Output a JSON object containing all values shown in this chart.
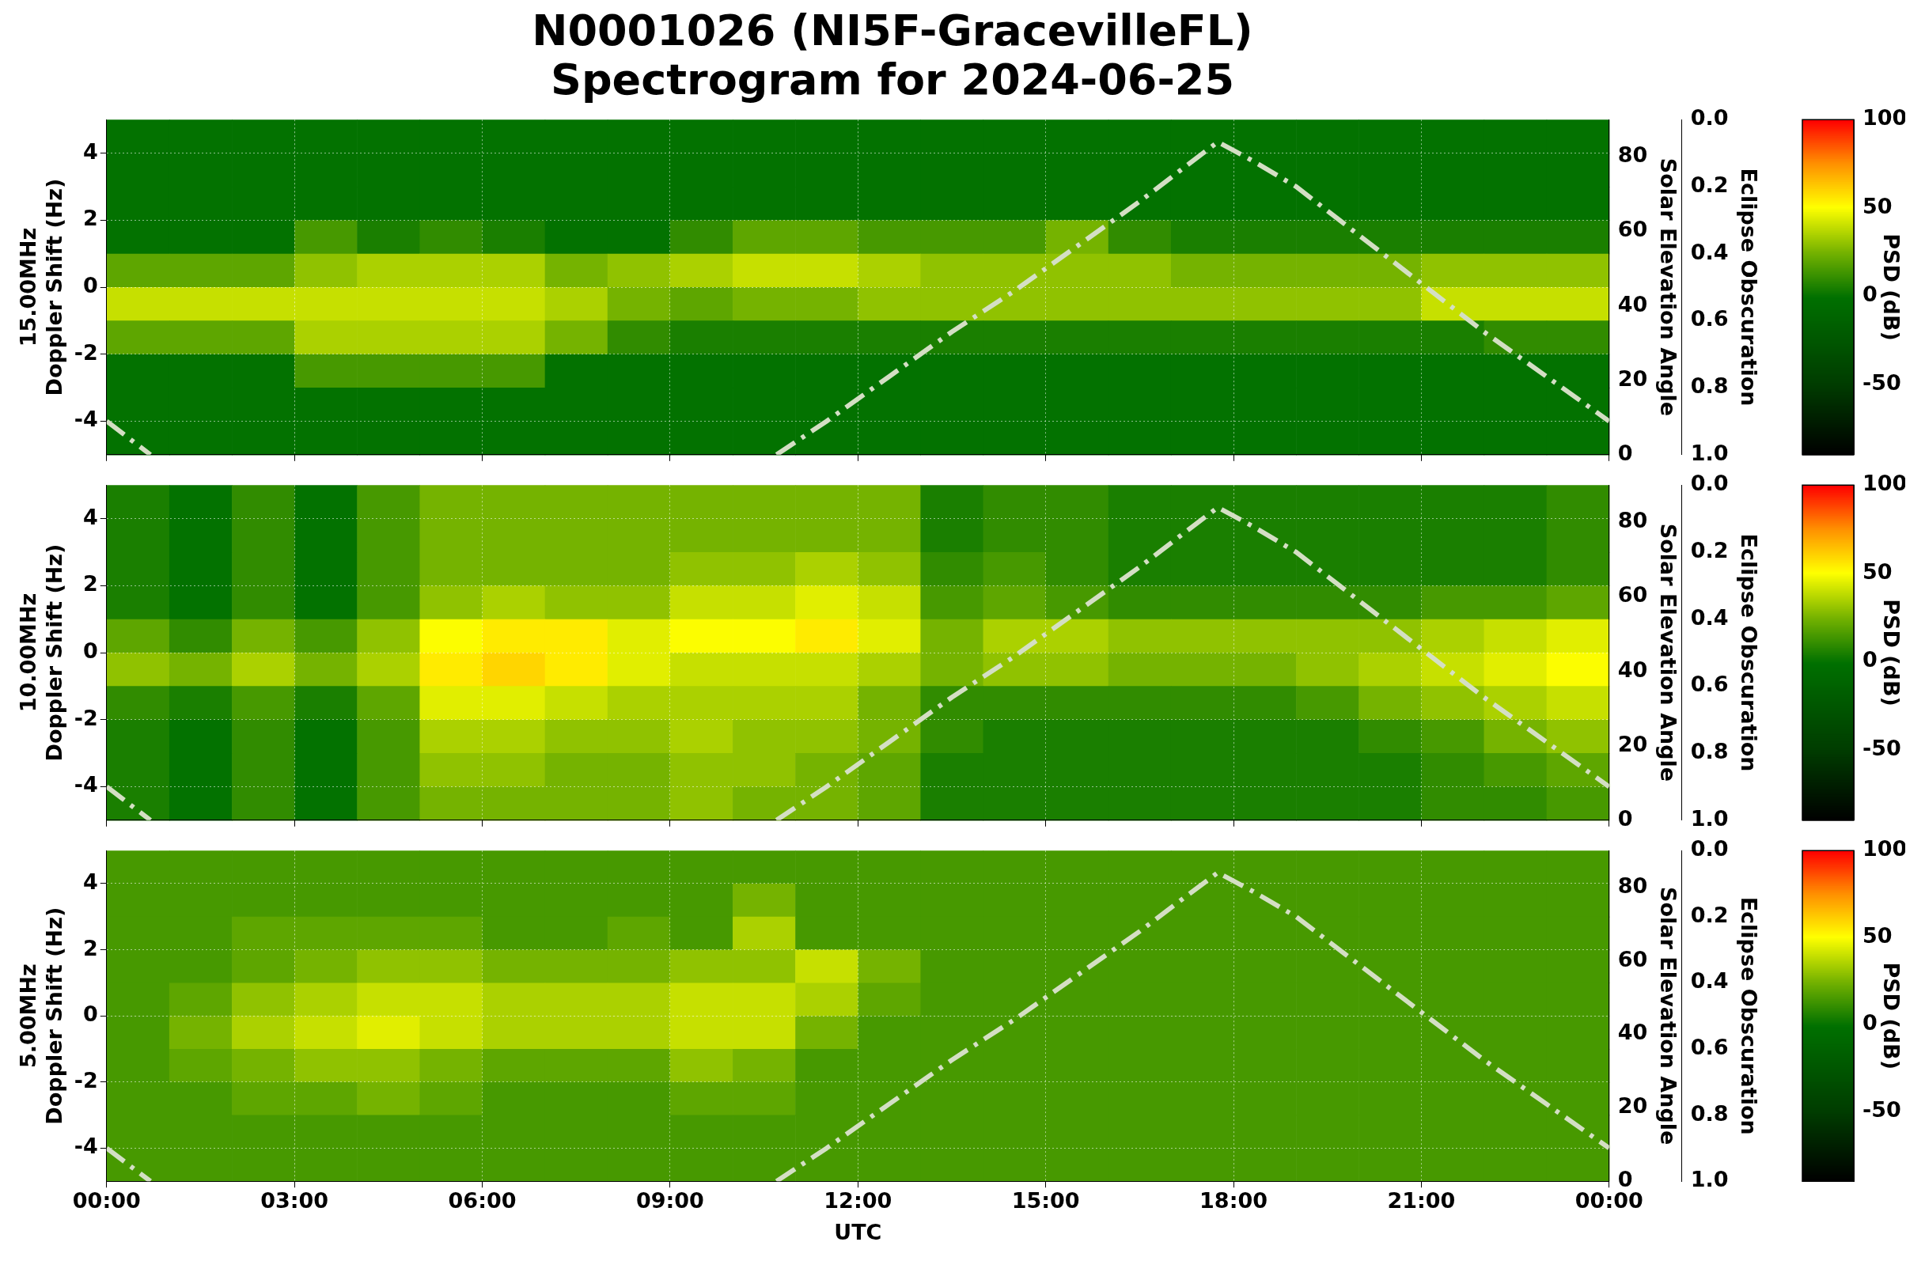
{
  "chart_data": [
    {
      "type": "heatmap",
      "title": "N0001026 (NI5F-GracevilleFL)\nSpectrogram for 2024-06-25",
      "ylabel": "15.00MHz\nDoppler Shift (Hz)",
      "y2label": "Solar Elevation Angle",
      "y3label": "Eclipse Obscuration",
      "clabel": "PSD (dB)",
      "xlim": [
        0,
        24
      ],
      "xticks": [
        {
          "value": 0,
          "label": null
        },
        {
          "value": 3,
          "label": null
        },
        {
          "value": 6,
          "label": null
        },
        {
          "value": 9,
          "label": null
        },
        {
          "value": 12,
          "label": null
        },
        {
          "value": 15,
          "label": null
        },
        {
          "value": 18,
          "label": null
        },
        {
          "value": 21,
          "label": null
        },
        {
          "value": 24,
          "label": null
        }
      ],
      "ylim": [
        -5,
        5
      ],
      "yticks": [
        -4,
        -2,
        0,
        2,
        4
      ],
      "y2lim": [
        0,
        90
      ],
      "y2ticks": [
        0,
        20,
        40,
        60,
        80
      ],
      "y3lim": [
        1,
        0
      ],
      "y3ticks": [
        {
          "value": 0,
          "label": "0.0"
        },
        {
          "value": 0.2,
          "label": "0.2"
        },
        {
          "value": 0.4,
          "label": "0.4"
        },
        {
          "value": 0.6,
          "label": "0.6"
        },
        {
          "value": 0.8,
          "label": "0.8"
        },
        {
          "value": 1,
          "label": "1.0"
        }
      ],
      "clim": [
        -90,
        100
      ],
      "cticks": [
        -50,
        0,
        50,
        100
      ],
      "grid": true,
      "tick_labels": "y",
      "cells": [
        [
          0,
          0,
          0,
          0,
          0,
          0,
          0,
          0,
          0,
          0,
          0,
          0,
          0,
          0,
          0,
          0,
          0,
          0,
          0,
          0,
          0,
          0,
          0,
          0
        ],
        [
          0,
          0,
          0,
          0,
          0,
          0,
          0,
          0,
          0,
          0,
          0,
          0,
          0,
          0,
          0,
          0,
          0,
          0,
          0,
          0,
          0,
          0,
          0,
          0
        ],
        [
          0,
          0,
          0,
          0,
          0,
          0,
          0,
          0,
          0,
          0,
          0,
          0,
          0,
          0,
          0,
          0,
          0,
          0,
          0,
          0,
          0,
          0,
          0,
          0
        ],
        [
          0,
          0,
          0,
          15,
          5,
          10,
          5,
          0,
          0,
          10,
          20,
          20,
          15,
          15,
          15,
          25,
          10,
          5,
          5,
          5,
          5,
          5,
          5,
          5
        ],
        [
          20,
          20,
          20,
          30,
          35,
          35,
          35,
          25,
          30,
          35,
          40,
          40,
          35,
          30,
          30,
          30,
          30,
          25,
          25,
          25,
          25,
          30,
          30,
          30
        ],
        [
          40,
          40,
          40,
          40,
          40,
          40,
          40,
          35,
          25,
          20,
          25,
          25,
          30,
          30,
          30,
          30,
          30,
          30,
          30,
          30,
          30,
          40,
          40,
          40
        ],
        [
          20,
          20,
          20,
          35,
          35,
          35,
          35,
          25,
          10,
          5,
          5,
          5,
          5,
          5,
          5,
          5,
          5,
          5,
          5,
          5,
          5,
          5,
          10,
          10
        ],
        [
          0,
          0,
          0,
          15,
          15,
          15,
          15,
          0,
          0,
          0,
          0,
          0,
          0,
          0,
          0,
          0,
          0,
          0,
          0,
          0,
          0,
          0,
          0,
          0
        ],
        [
          0,
          0,
          0,
          0,
          0,
          0,
          0,
          0,
          0,
          0,
          0,
          0,
          0,
          0,
          0,
          0,
          0,
          0,
          0,
          0,
          0,
          0,
          0,
          0
        ],
        [
          0,
          0,
          0,
          0,
          0,
          0,
          0,
          0,
          0,
          0,
          0,
          0,
          0,
          0,
          0,
          0,
          0,
          0,
          0,
          0,
          0,
          0,
          0,
          0
        ]
      ],
      "series": [
        {
          "type": "line",
          "axis": "y2",
          "color": "#d4dfc4",
          "line_style": "dashed",
          "x": [
            0,
            0.7,
            5,
            10.7,
            11.5,
            12.5,
            13.5,
            14.5,
            15.5,
            16.5,
            17.2,
            17.75,
            18.3,
            19,
            20,
            21,
            22,
            23,
            24
          ],
          "values": [
            9,
            0,
            null,
            0,
            9,
            21,
            33,
            44,
            56,
            68,
            77,
            84,
            79,
            72,
            59,
            46,
            33,
            21,
            9
          ]
        }
      ]
    },
    {
      "type": "heatmap",
      "ylabel": "10.00MHz\nDoppler Shift (Hz)",
      "y2label": "Solar Elevation Angle",
      "y3label": "Eclipse Obscuration",
      "clabel": "PSD (dB)",
      "xlim": [
        0,
        24
      ],
      "xticks": [
        {
          "value": 0,
          "label": null
        },
        {
          "value": 3,
          "label": null
        },
        {
          "value": 6,
          "label": null
        },
        {
          "value": 9,
          "label": null
        },
        {
          "value": 12,
          "label": null
        },
        {
          "value": 15,
          "label": null
        },
        {
          "value": 18,
          "label": null
        },
        {
          "value": 21,
          "label": null
        },
        {
          "value": 24,
          "label": null
        }
      ],
      "ylim": [
        -5,
        5
      ],
      "yticks": [
        -4,
        -2,
        0,
        2,
        4
      ],
      "y2lim": [
        0,
        90
      ],
      "y2ticks": [
        0,
        20,
        40,
        60,
        80
      ],
      "y3lim": [
        1,
        0
      ],
      "y3ticks": [
        {
          "value": 0,
          "label": "0.0"
        },
        {
          "value": 0.2,
          "label": "0.2"
        },
        {
          "value": 0.4,
          "label": "0.4"
        },
        {
          "value": 0.6,
          "label": "0.6"
        },
        {
          "value": 0.8,
          "label": "0.8"
        },
        {
          "value": 1,
          "label": "1.0"
        }
      ],
      "clim": [
        -90,
        100
      ],
      "cticks": [
        -50,
        0,
        50,
        100
      ],
      "grid": true,
      "tick_labels": "y",
      "cells": [
        [
          5,
          0,
          10,
          0,
          15,
          25,
          25,
          25,
          25,
          25,
          25,
          25,
          25,
          5,
          10,
          10,
          5,
          5,
          5,
          5,
          5,
          5,
          5,
          10
        ],
        [
          5,
          0,
          10,
          0,
          15,
          25,
          25,
          25,
          25,
          25,
          25,
          25,
          25,
          5,
          10,
          10,
          5,
          5,
          5,
          5,
          5,
          5,
          5,
          10
        ],
        [
          5,
          0,
          10,
          0,
          15,
          25,
          25,
          25,
          25,
          30,
          30,
          35,
          30,
          10,
          15,
          10,
          5,
          5,
          5,
          5,
          5,
          5,
          5,
          10
        ],
        [
          5,
          0,
          10,
          0,
          15,
          30,
          35,
          30,
          30,
          40,
          40,
          45,
          40,
          15,
          20,
          15,
          10,
          10,
          10,
          10,
          10,
          15,
          15,
          20
        ],
        [
          20,
          10,
          25,
          15,
          30,
          50,
          55,
          55,
          45,
          50,
          50,
          55,
          45,
          25,
          35,
          35,
          30,
          30,
          30,
          30,
          30,
          35,
          40,
          45
        ],
        [
          30,
          25,
          35,
          25,
          35,
          55,
          60,
          55,
          45,
          40,
          40,
          40,
          35,
          25,
          30,
          30,
          25,
          25,
          25,
          30,
          35,
          40,
          45,
          50
        ],
        [
          10,
          5,
          15,
          5,
          20,
          45,
          45,
          40,
          35,
          35,
          35,
          35,
          25,
          10,
          10,
          10,
          10,
          10,
          10,
          15,
          25,
          30,
          35,
          40
        ],
        [
          5,
          0,
          10,
          0,
          15,
          35,
          35,
          30,
          30,
          35,
          30,
          30,
          25,
          10,
          5,
          5,
          5,
          5,
          5,
          5,
          10,
          15,
          25,
          30
        ],
        [
          5,
          0,
          10,
          0,
          15,
          30,
          30,
          25,
          25,
          30,
          30,
          25,
          20,
          5,
          5,
          5,
          5,
          5,
          5,
          5,
          5,
          10,
          15,
          20
        ],
        [
          5,
          0,
          10,
          0,
          15,
          25,
          25,
          25,
          25,
          30,
          25,
          25,
          20,
          5,
          5,
          5,
          5,
          5,
          5,
          5,
          5,
          10,
          10,
          15
        ]
      ],
      "series": [
        {
          "type": "line",
          "axis": "y2",
          "color": "#d4dfc4",
          "line_style": "dashed",
          "x": [
            0,
            0.7,
            5,
            10.7,
            11.5,
            12.5,
            13.5,
            14.5,
            15.5,
            16.5,
            17.2,
            17.75,
            18.3,
            19,
            20,
            21,
            22,
            23,
            24
          ],
          "values": [
            9,
            0,
            null,
            0,
            9,
            21,
            33,
            44,
            56,
            68,
            77,
            84,
            79,
            72,
            59,
            46,
            33,
            21,
            9
          ]
        }
      ]
    },
    {
      "type": "heatmap",
      "xlabel": "UTC",
      "ylabel": "5.00MHz\nDoppler Shift (Hz)",
      "y2label": "Solar Elevation Angle",
      "y3label": "Eclipse Obscuration",
      "clabel": "PSD (dB)",
      "xlim": [
        0,
        24
      ],
      "xticks": [
        {
          "value": 0,
          "label": "00:00"
        },
        {
          "value": 3,
          "label": "03:00"
        },
        {
          "value": 6,
          "label": "06:00"
        },
        {
          "value": 9,
          "label": "09:00"
        },
        {
          "value": 12,
          "label": "12:00"
        },
        {
          "value": 15,
          "label": "15:00"
        },
        {
          "value": 18,
          "label": "18:00"
        },
        {
          "value": 21,
          "label": "21:00"
        },
        {
          "value": 24,
          "label": "00:00"
        }
      ],
      "ylim": [
        -5,
        5
      ],
      "yticks": [
        -4,
        -2,
        0,
        2,
        4
      ],
      "y2lim": [
        0,
        90
      ],
      "y2ticks": [
        0,
        20,
        40,
        60,
        80
      ],
      "y3lim": [
        1,
        0
      ],
      "y3ticks": [
        {
          "value": 0,
          "label": "0.0"
        },
        {
          "value": 0.2,
          "label": "0.2"
        },
        {
          "value": 0.4,
          "label": "0.4"
        },
        {
          "value": 0.6,
          "label": "0.6"
        },
        {
          "value": 0.8,
          "label": "0.8"
        },
        {
          "value": 1,
          "label": "1.0"
        }
      ],
      "clim": [
        -90,
        100
      ],
      "cticks": [
        -50,
        0,
        50,
        100
      ],
      "grid": true,
      "cells": [
        [
          15,
          15,
          15,
          15,
          15,
          15,
          15,
          15,
          15,
          15,
          15,
          15,
          15,
          15,
          15,
          15,
          15,
          15,
          15,
          15,
          15,
          15,
          15,
          15
        ],
        [
          15,
          15,
          15,
          15,
          15,
          15,
          15,
          15,
          15,
          15,
          25,
          15,
          15,
          15,
          15,
          15,
          15,
          15,
          15,
          15,
          15,
          15,
          15,
          15
        ],
        [
          15,
          15,
          20,
          20,
          20,
          20,
          15,
          15,
          20,
          15,
          35,
          15,
          15,
          15,
          15,
          15,
          15,
          15,
          15,
          15,
          15,
          15,
          15,
          15
        ],
        [
          15,
          15,
          20,
          25,
          30,
          30,
          25,
          25,
          25,
          30,
          30,
          40,
          25,
          15,
          15,
          15,
          15,
          15,
          15,
          15,
          15,
          15,
          15,
          15
        ],
        [
          15,
          20,
          30,
          35,
          40,
          40,
          35,
          35,
          35,
          40,
          40,
          35,
          20,
          15,
          15,
          15,
          15,
          15,
          15,
          15,
          15,
          15,
          15,
          15
        ],
        [
          15,
          25,
          35,
          40,
          45,
          40,
          35,
          35,
          35,
          40,
          40,
          25,
          15,
          15,
          15,
          15,
          15,
          15,
          15,
          15,
          15,
          15,
          15,
          15
        ],
        [
          15,
          20,
          25,
          30,
          30,
          25,
          20,
          20,
          20,
          30,
          25,
          15,
          15,
          15,
          15,
          15,
          15,
          15,
          15,
          15,
          15,
          15,
          15,
          15
        ],
        [
          15,
          15,
          20,
          20,
          25,
          20,
          15,
          15,
          15,
          20,
          20,
          15,
          15,
          15,
          15,
          15,
          15,
          15,
          15,
          15,
          15,
          15,
          15,
          15
        ],
        [
          15,
          15,
          15,
          15,
          15,
          15,
          15,
          15,
          15,
          15,
          15,
          15,
          15,
          15,
          15,
          15,
          15,
          15,
          15,
          15,
          15,
          15,
          15,
          15
        ],
        [
          15,
          15,
          15,
          15,
          15,
          15,
          15,
          15,
          15,
          15,
          15,
          15,
          15,
          15,
          15,
          15,
          15,
          15,
          15,
          15,
          15,
          15,
          15,
          15
        ]
      ],
      "series": [
        {
          "type": "line",
          "axis": "y2",
          "color": "#d4dfc4",
          "line_style": "dashed",
          "x": [
            0,
            0.7,
            5,
            10.7,
            11.5,
            12.5,
            13.5,
            14.5,
            15.5,
            16.5,
            17.2,
            17.75,
            18.3,
            19,
            20,
            21,
            22,
            23,
            24
          ],
          "values": [
            9,
            0,
            null,
            0,
            9,
            21,
            33,
            44,
            56,
            68,
            77,
            84,
            79,
            72,
            59,
            46,
            33,
            21,
            9
          ]
        }
      ]
    }
  ]
}
